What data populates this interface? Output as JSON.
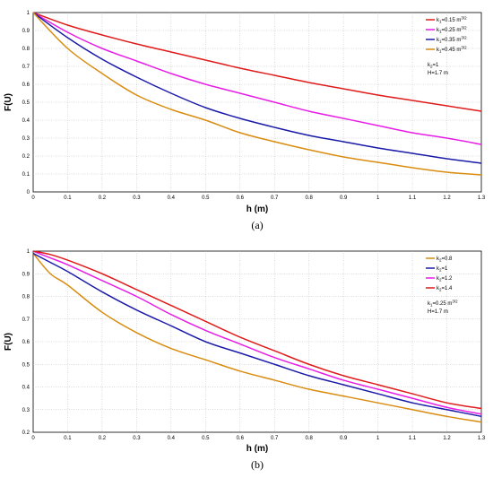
{
  "chart_data": [
    {
      "type": "line",
      "panel_label": "(a)",
      "xlabel": "h (m)",
      "ylabel": "F(U)",
      "xlim": [
        0,
        1.3
      ],
      "ylim": [
        0,
        1
      ],
      "x_ticks": [
        "0",
        "0.1",
        "0.2",
        "0.3",
        "0.4",
        "0.5",
        "0.6",
        "0.7",
        "0.8",
        "0.9",
        "1",
        "1.1",
        "1.2",
        "1.3"
      ],
      "y_ticks": [
        "0",
        "0.1",
        "0.2",
        "0.3",
        "0.4",
        "0.5",
        "0.6",
        "0.7",
        "0.8",
        "0.9",
        "1"
      ],
      "grid": true,
      "legend_position": "top-right",
      "x": [
        0,
        0.1,
        0.2,
        0.3,
        0.4,
        0.5,
        0.6,
        0.7,
        0.8,
        0.9,
        1.0,
        1.1,
        1.2,
        1.3
      ],
      "series": [
        {
          "name": "k1=0.15 m3/2",
          "legend_main": "k",
          "legend_sub": "1",
          "legend_rest": "=0.15 m",
          "legend_sup": "3/2",
          "color": "#e01b1b",
          "values": [
            1.0,
            0.93,
            0.875,
            0.825,
            0.78,
            0.735,
            0.69,
            0.65,
            0.61,
            0.575,
            0.54,
            0.51,
            0.48,
            0.45
          ]
        },
        {
          "name": "k1=0.25 m3/2",
          "legend_main": "k",
          "legend_sub": "1",
          "legend_rest": "=0.25 m",
          "legend_sup": "3/2",
          "color": "#e61ee6",
          "values": [
            1.0,
            0.89,
            0.8,
            0.73,
            0.66,
            0.6,
            0.55,
            0.5,
            0.45,
            0.41,
            0.37,
            0.33,
            0.3,
            0.265
          ]
        },
        {
          "name": "k1=0.35 m3/2",
          "legend_main": "k",
          "legend_sub": "1",
          "legend_rest": "=0.35 m",
          "legend_sup": "3/2",
          "color": "#1a1aa8",
          "values": [
            1.0,
            0.86,
            0.74,
            0.64,
            0.55,
            0.47,
            0.41,
            0.36,
            0.315,
            0.28,
            0.245,
            0.215,
            0.185,
            0.16
          ]
        },
        {
          "name": "k1=0.45 m3/2",
          "legend_main": "k",
          "legend_sub": "1",
          "legend_rest": "=0.45 m",
          "legend_sup": "3/2",
          "color": "#d98c10",
          "values": [
            1.0,
            0.8,
            0.66,
            0.54,
            0.46,
            0.4,
            0.33,
            0.28,
            0.235,
            0.195,
            0.165,
            0.135,
            0.11,
            0.095
          ]
        }
      ],
      "annotation": [
        {
          "main": "k",
          "sub": "2",
          "rest": "=1"
        },
        {
          "main": "H=1.7 m",
          "sub": "",
          "rest": ""
        }
      ]
    },
    {
      "type": "line",
      "panel_label": "(b)",
      "xlabel": "h (m)",
      "ylabel": "F(U)",
      "xlim": [
        0,
        1.3
      ],
      "ylim": [
        0.2,
        1
      ],
      "x_ticks": [
        "0",
        "0.1",
        "0.2",
        "0.3",
        "0.4",
        "0.5",
        "0.6",
        "0.7",
        "0.8",
        "0.9",
        "1",
        "1.1",
        "1.2",
        "1.3"
      ],
      "y_ticks": [
        "0.2",
        "0.3",
        "0.4",
        "0.5",
        "0.6",
        "0.7",
        "0.8",
        "0.9",
        "1"
      ],
      "grid": true,
      "legend_position": "top-right",
      "x": [
        0,
        0.05,
        0.1,
        0.2,
        0.3,
        0.4,
        0.5,
        0.6,
        0.7,
        0.8,
        0.9,
        1.0,
        1.1,
        1.2,
        1.3
      ],
      "series": [
        {
          "name": "k2=0.8",
          "legend_main": "k",
          "legend_sub": "2",
          "legend_rest": "=0.8",
          "legend_sup": "",
          "color": "#d98c10",
          "values": [
            0.99,
            0.9,
            0.85,
            0.73,
            0.64,
            0.57,
            0.52,
            0.47,
            0.43,
            0.39,
            0.36,
            0.33,
            0.3,
            0.27,
            0.245
          ]
        },
        {
          "name": "k2=1",
          "legend_main": "k",
          "legend_sub": "2",
          "legend_rest": "=1",
          "legend_sup": "",
          "color": "#1a1aa8",
          "values": [
            0.99,
            0.95,
            0.91,
            0.82,
            0.74,
            0.67,
            0.6,
            0.55,
            0.5,
            0.45,
            0.41,
            0.37,
            0.33,
            0.3,
            0.27
          ]
        },
        {
          "name": "k2=1.2",
          "legend_main": "k",
          "legend_sub": "2",
          "legend_rest": "=1.2",
          "legend_sup": "",
          "color": "#e61ee6",
          "values": [
            1.0,
            0.97,
            0.94,
            0.87,
            0.8,
            0.72,
            0.65,
            0.59,
            0.53,
            0.48,
            0.43,
            0.39,
            0.35,
            0.31,
            0.28
          ]
        },
        {
          "name": "k2=1.4",
          "legend_main": "k",
          "legend_sub": "2",
          "legend_rest": "=1.4",
          "legend_sup": "",
          "color": "#e01b1b",
          "values": [
            1.0,
            0.985,
            0.96,
            0.9,
            0.83,
            0.76,
            0.69,
            0.62,
            0.56,
            0.5,
            0.45,
            0.41,
            0.37,
            0.33,
            0.305
          ]
        }
      ],
      "annotation": [
        {
          "main": "k",
          "sub": "1",
          "rest": "=0.25 m",
          "sup": "3/2"
        },
        {
          "main": "H=1.7 m",
          "sub": "",
          "rest": ""
        }
      ]
    }
  ]
}
